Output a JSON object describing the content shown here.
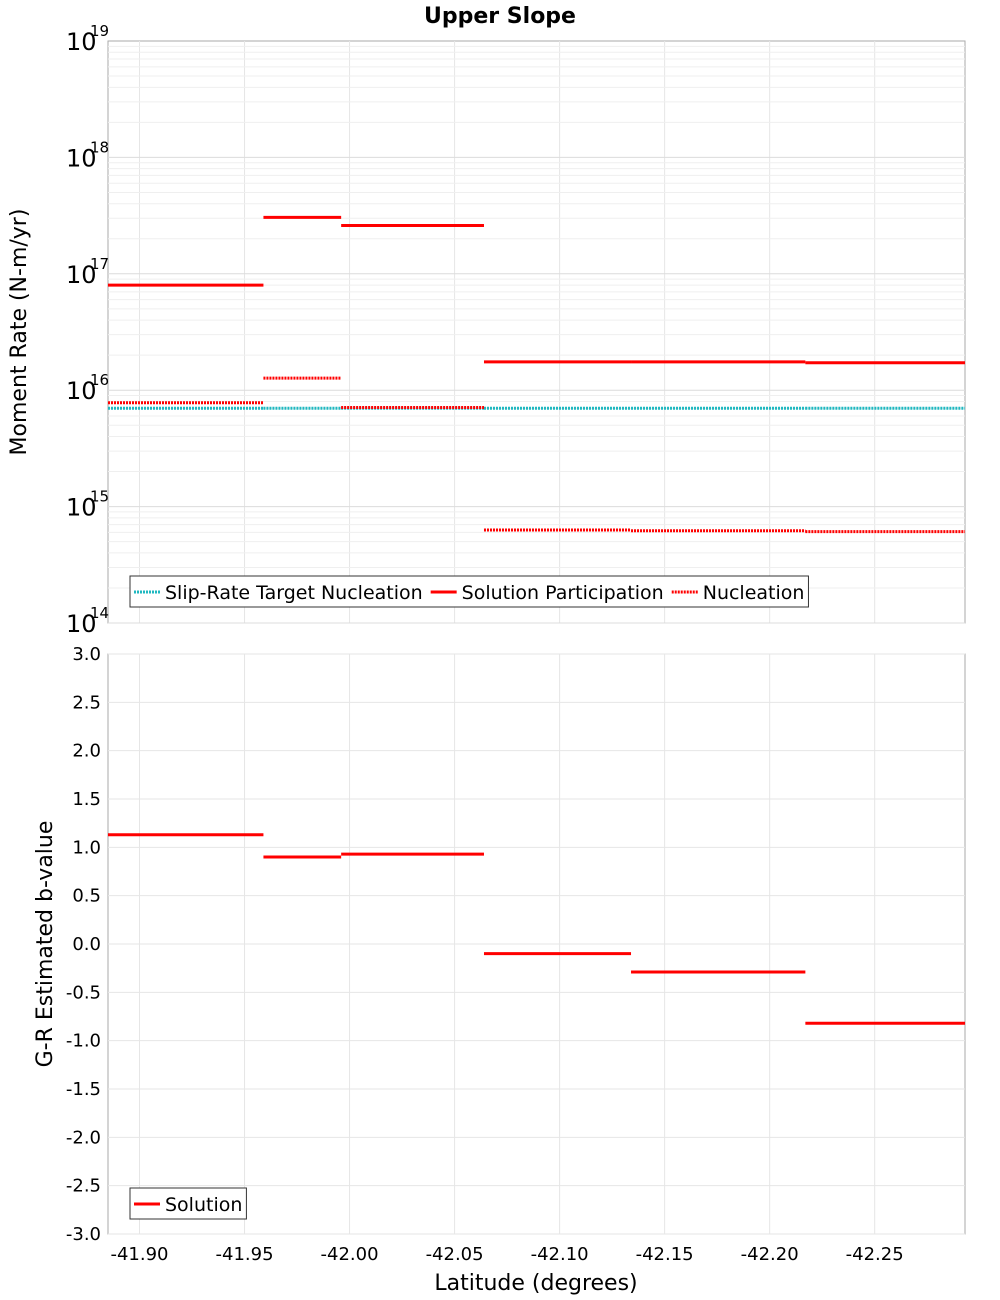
{
  "chart_data": {
    "type": "line",
    "title": "Upper Slope",
    "xlabel": "Latitude (degrees)",
    "xlim": [
      -41.885,
      -42.293
    ],
    "x_ticks": [
      "-41.90",
      "-41.95",
      "-42.00",
      "-42.05",
      "-42.10",
      "-42.15",
      "-42.20",
      "-42.25"
    ],
    "panels": [
      {
        "ylabel": "Moment Rate (N-m/yr)",
        "yscale": "log",
        "ylim": [
          100000000000000.0,
          1e+19
        ],
        "y_tick_exponents": [
          "14",
          "15",
          "16",
          "17",
          "18",
          "19"
        ],
        "grid": true,
        "legend_position": "bottom-left",
        "series": [
          {
            "name": "Slip-Rate Target Nucleation",
            "style": "dotted",
            "color": "#1fb8c0",
            "segments": [
              {
                "x": [
                  -41.885,
                  -41.959
                ],
                "y": 7000000000000000.0
              },
              {
                "x": [
                  -41.959,
                  -41.996
                ],
                "y": 7000000000000000.0
              },
              {
                "x": [
                  -41.996,
                  -42.064
                ],
                "y": 7000000000000000.0
              },
              {
                "x": [
                  -42.064,
                  -42.134
                ],
                "y": 7000000000000000.0
              },
              {
                "x": [
                  -42.134,
                  -42.217
                ],
                "y": 7000000000000000.0
              },
              {
                "x": [
                  -42.217,
                  -42.293
                ],
                "y": 7000000000000000.0
              }
            ]
          },
          {
            "name": "Solution Participation",
            "style": "solid",
            "color": "#ff0000",
            "segments": [
              {
                "x": [
                  -41.885,
                  -41.959
                ],
                "y": 8e+16
              },
              {
                "x": [
                  -41.959,
                  -41.996
                ],
                "y": 3.05e+17
              },
              {
                "x": [
                  -41.996,
                  -42.064
                ],
                "y": 2.6e+17
              },
              {
                "x": [
                  -42.064,
                  -42.134
                ],
                "y": 1.75e+16
              },
              {
                "x": [
                  -42.134,
                  -42.217
                ],
                "y": 1.75e+16
              },
              {
                "x": [
                  -42.217,
                  -42.293
                ],
                "y": 1.72e+16
              }
            ]
          },
          {
            "name": "Nucleation",
            "style": "dotted",
            "color": "#ff0000",
            "segments": [
              {
                "x": [
                  -41.885,
                  -41.959
                ],
                "y": 7800000000000000.0
              },
              {
                "x": [
                  -41.959,
                  -41.996
                ],
                "y": 1.27e+16
              },
              {
                "x": [
                  -41.996,
                  -42.064
                ],
                "y": 7100000000000000.0
              },
              {
                "x": [
                  -42.064,
                  -42.134
                ],
                "y": 630000000000000.0
              },
              {
                "x": [
                  -42.134,
                  -42.217
                ],
                "y": 620000000000000.0
              },
              {
                "x": [
                  -42.217,
                  -42.293
                ],
                "y": 610000000000000.0
              }
            ]
          }
        ]
      },
      {
        "ylabel": "G-R Estimated b-value",
        "yscale": "linear",
        "ylim": [
          -3.0,
          3.0
        ],
        "y_ticks": [
          "-3.0",
          "-2.5",
          "-2.0",
          "-1.5",
          "-1.0",
          "-0.5",
          "0.0",
          "0.5",
          "1.0",
          "1.5",
          "2.0",
          "2.5",
          "3.0"
        ],
        "grid": true,
        "legend_position": "bottom-left",
        "series": [
          {
            "name": "Solution",
            "style": "solid",
            "color": "#ff0000",
            "segments": [
              {
                "x": [
                  -41.885,
                  -41.959
                ],
                "y": 1.13
              },
              {
                "x": [
                  -41.959,
                  -41.996
                ],
                "y": 0.9
              },
              {
                "x": [
                  -41.996,
                  -42.064
                ],
                "y": 0.93
              },
              {
                "x": [
                  -42.064,
                  -42.134
                ],
                "y": -0.1
              },
              {
                "x": [
                  -42.134,
                  -42.217
                ],
                "y": -0.29
              },
              {
                "x": [
                  -42.217,
                  -42.293
                ],
                "y": -0.82
              }
            ]
          }
        ]
      }
    ]
  }
}
